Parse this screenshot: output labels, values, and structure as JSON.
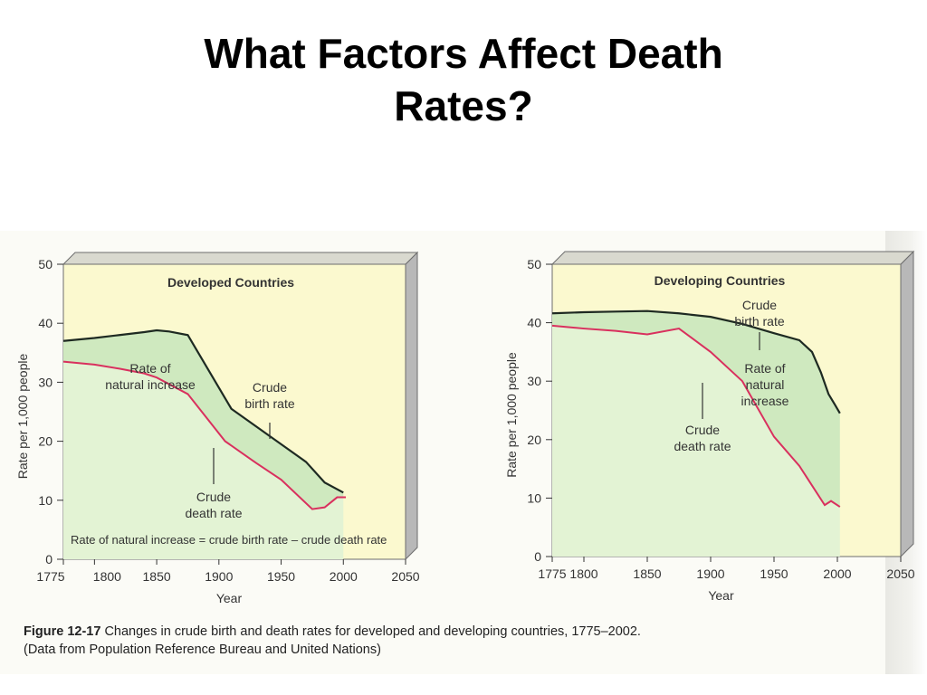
{
  "slide": {
    "title_line1": "What Factors Affect Death",
    "title_line2": "Rates?"
  },
  "caption": {
    "figure_number": "Figure 12-17",
    "text": "Changes in crude birth and death rates for developed and developing countries, 1775–2002.",
    "source": "(Data from Population Reference Bureau and United Nations)"
  },
  "colors": {
    "panel_background": "#fbf9cf",
    "natural_increase_fill": "#cfe9bf",
    "lower_fill": "#e3f3d4",
    "birth_rate_line": "#1e2a22",
    "death_rate_line": "#d9305e",
    "panel_frame": "#6d6d6d"
  },
  "chart_data": [
    {
      "type": "area",
      "title": "Developed Countries",
      "xlabel": "Year",
      "ylabel": "Rate per 1,000 people",
      "xlim": [
        1775,
        2050
      ],
      "ylim": [
        0,
        50
      ],
      "x_ticks": [
        1775,
        1800,
        1850,
        1900,
        1950,
        2000,
        2050
      ],
      "x_tick_labels": [
        "1775",
        "1800",
        "1850",
        "1900",
        "1950",
        "2000",
        "2050"
      ],
      "y_ticks": [
        0,
        10,
        20,
        30,
        40,
        50
      ],
      "series": [
        {
          "name": "Crude birth rate",
          "x": [
            1775,
            1800,
            1820,
            1840,
            1850,
            1860,
            1875,
            1910,
            1950,
            1970,
            1985,
            2000
          ],
          "y": [
            37,
            37.5,
            38,
            38.5,
            38.8,
            38.6,
            38,
            25.5,
            19.5,
            16.5,
            13,
            11.3
          ]
        },
        {
          "name": "Crude death rate",
          "x": [
            1775,
            1800,
            1820,
            1840,
            1850,
            1875,
            1905,
            1930,
            1950,
            1975,
            1985,
            1995,
            2002
          ],
          "y": [
            33.5,
            33,
            32.3,
            31.5,
            30.8,
            28,
            20,
            16.3,
            13.5,
            8.5,
            8.8,
            10.5,
            10.5
          ]
        }
      ],
      "annotations": {
        "natural_increase": "Rate of\nnatural increase",
        "birth_rate": "Crude\nbirth rate",
        "death_rate": "Crude\ndeath rate",
        "formula": "Rate of natural increase = crude birth rate – crude death rate"
      }
    },
    {
      "type": "area",
      "title": "Developing Countries",
      "xlabel": "Year",
      "ylabel": "Rate per 1,000 people",
      "xlim": [
        1775,
        2050
      ],
      "ylim": [
        0,
        50
      ],
      "x_ticks": [
        1775,
        1800,
        1850,
        1900,
        1950,
        2000,
        2050
      ],
      "x_tick_labels": [
        "1775",
        "1800",
        "1850",
        "1900",
        "1950",
        "2000",
        "2050"
      ],
      "y_ticks": [
        0,
        10,
        20,
        30,
        40,
        50
      ],
      "series": [
        {
          "name": "Crude birth rate",
          "x": [
            1775,
            1800,
            1825,
            1850,
            1875,
            1900,
            1925,
            1950,
            1970,
            1980,
            1987,
            1993,
            1998,
            2002
          ],
          "y": [
            41.6,
            41.8,
            41.9,
            42,
            41.6,
            41,
            39.8,
            38.2,
            37,
            35,
            31.5,
            27.8,
            26,
            24.5
          ]
        },
        {
          "name": "Crude death rate",
          "x": [
            1775,
            1800,
            1825,
            1850,
            1875,
            1900,
            1925,
            1950,
            1970,
            1990,
            1995,
            2002
          ],
          "y": [
            39.5,
            39,
            38.6,
            38,
            39,
            35,
            30,
            20.5,
            15.5,
            8.8,
            9.5,
            8.5
          ]
        }
      ],
      "annotations": {
        "birth_rate": "Crude\nbirth rate",
        "natural_increase": "Rate of\nnatural\nincrease",
        "death_rate": "Crude\ndeath rate"
      }
    }
  ]
}
